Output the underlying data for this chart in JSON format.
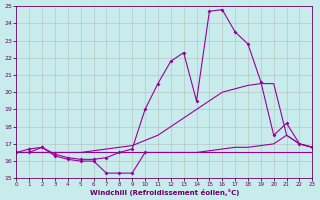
{
  "xlabel": "Windchill (Refroidissement éolien,°C)",
  "xlim": [
    0,
    23
  ],
  "ylim": [
    15,
    25
  ],
  "yticks": [
    15,
    16,
    17,
    18,
    19,
    20,
    21,
    22,
    23,
    24,
    25
  ],
  "xticks": [
    0,
    1,
    2,
    3,
    4,
    5,
    6,
    7,
    8,
    9,
    10,
    11,
    12,
    13,
    14,
    15,
    16,
    17,
    18,
    19,
    20,
    21,
    22,
    23
  ],
  "bg_color": "#c8ecec",
  "grid_color": "#b0b0b0",
  "line_color": "#990099",
  "series1_x": [
    0,
    1,
    2,
    3,
    4,
    5,
    6,
    7,
    8,
    9,
    10,
    11,
    12,
    13,
    14,
    15,
    16,
    17,
    18,
    19,
    20,
    21,
    22,
    23
  ],
  "series1_y": [
    16.5,
    16.5,
    16.5,
    16.5,
    16.5,
    16.5,
    16.5,
    16.5,
    16.5,
    16.5,
    16.5,
    16.5,
    16.5,
    16.5,
    16.5,
    16.5,
    16.5,
    16.5,
    16.5,
    16.5,
    16.5,
    16.5,
    16.5,
    16.5
  ],
  "series2_x": [
    0,
    1,
    2,
    3,
    4,
    5,
    6,
    7,
    8,
    9,
    10
  ],
  "series2_y": [
    16.5,
    16.7,
    16.8,
    16.3,
    16.1,
    16.0,
    16.0,
    15.3,
    15.3,
    15.3,
    16.5
  ],
  "series3_x": [
    0,
    1,
    2,
    3,
    4,
    5,
    6,
    7,
    8,
    9,
    10,
    11,
    12,
    13,
    14,
    15,
    16,
    17,
    18,
    19,
    20,
    21,
    22,
    23
  ],
  "series3_y": [
    16.5,
    16.5,
    16.5,
    16.5,
    16.5,
    16.5,
    16.6,
    16.7,
    16.8,
    16.9,
    17.2,
    17.5,
    18.0,
    18.5,
    19.0,
    19.5,
    20.0,
    20.2,
    20.4,
    20.5,
    20.5,
    17.5,
    17.0,
    16.8
  ],
  "series4_x": [
    0,
    1,
    2,
    3,
    4,
    5,
    6,
    7,
    8,
    9,
    10,
    11,
    12,
    13,
    14,
    15,
    16,
    17,
    18,
    19,
    20,
    21,
    22,
    23
  ],
  "series4_y": [
    16.5,
    16.5,
    16.8,
    16.4,
    16.2,
    16.1,
    16.1,
    16.2,
    16.5,
    16.7,
    19.0,
    20.5,
    21.8,
    22.3,
    19.5,
    24.7,
    24.8,
    23.5,
    22.8,
    20.6,
    17.5,
    18.2,
    17.0,
    16.8
  ],
  "series5_x": [
    10,
    11,
    12,
    13,
    14,
    15,
    16,
    17,
    18,
    19,
    20,
    21,
    22,
    23
  ],
  "series5_y": [
    16.5,
    16.5,
    16.5,
    16.5,
    16.5,
    16.6,
    16.7,
    16.8,
    16.8,
    16.9,
    17.0,
    17.5,
    17.0,
    16.8
  ]
}
